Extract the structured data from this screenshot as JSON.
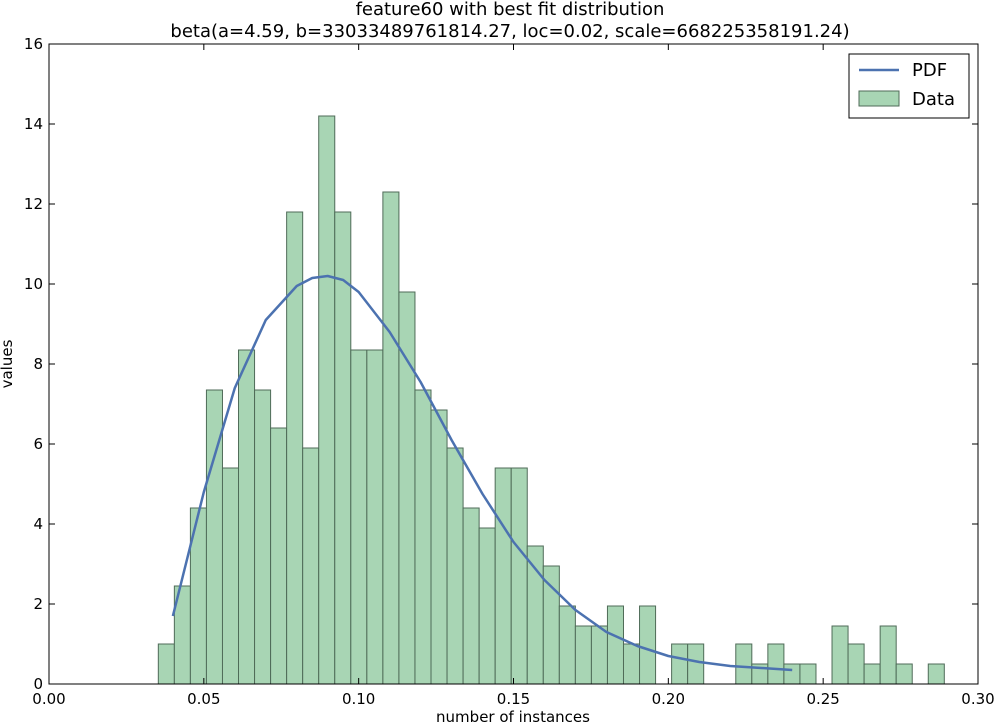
{
  "chart_data": {
    "type": "bar",
    "title": "feature60 with best fit distribution",
    "subtitle": "beta(a=4.59, b=33033489761814.27, loc=0.02, scale=668225358191.24)",
    "xlabel": "number of instances",
    "ylabel": "values",
    "xlim": [
      0.0,
      0.3
    ],
    "ylim": [
      0,
      16
    ],
    "xticks": [
      "0.00",
      "0.05",
      "0.10",
      "0.15",
      "0.20",
      "0.25",
      "0.30"
    ],
    "yticks": [
      "0",
      "2",
      "4",
      "6",
      "8",
      "10",
      "12",
      "14",
      "16"
    ],
    "grid": false,
    "legend_position": "top-right",
    "bin_start": 0.0353,
    "bin_width": 0.00518,
    "histogram_values": [
      1.0,
      2.45,
      4.4,
      7.35,
      5.4,
      8.35,
      7.35,
      6.4,
      11.8,
      5.9,
      14.2,
      11.8,
      8.35,
      8.35,
      12.3,
      9.8,
      7.35,
      6.85,
      5.9,
      4.4,
      3.9,
      5.4,
      5.4,
      3.45,
      2.95,
      1.95,
      1.45,
      1.45,
      1.95,
      1.0,
      1.95,
      0,
      1.0,
      1.0,
      0,
      0,
      1.0,
      0.5,
      1.0,
      0.5,
      0.5,
      0,
      1.45,
      1.0,
      0.5,
      1.45,
      0.5,
      0,
      0.5
    ],
    "pdf_x": [
      0.04,
      0.05,
      0.06,
      0.07,
      0.08,
      0.085,
      0.09,
      0.095,
      0.1,
      0.11,
      0.12,
      0.13,
      0.14,
      0.15,
      0.16,
      0.17,
      0.18,
      0.19,
      0.2,
      0.21,
      0.22,
      0.23,
      0.24
    ],
    "pdf_y": [
      1.7,
      4.8,
      7.4,
      9.1,
      9.95,
      10.15,
      10.2,
      10.1,
      9.8,
      8.8,
      7.55,
      6.1,
      4.75,
      3.55,
      2.6,
      1.85,
      1.3,
      0.95,
      0.7,
      0.55,
      0.45,
      0.4,
      0.35
    ],
    "series": [
      {
        "name": "PDF",
        "type": "line",
        "color": "#4c72b0"
      },
      {
        "name": "Data",
        "type": "histogram",
        "color": "#a8d5b4"
      }
    ],
    "colors": {
      "bar_fill": "#a8d5b4",
      "bar_edge": "#4f6b58",
      "line": "#4c72b0"
    }
  }
}
